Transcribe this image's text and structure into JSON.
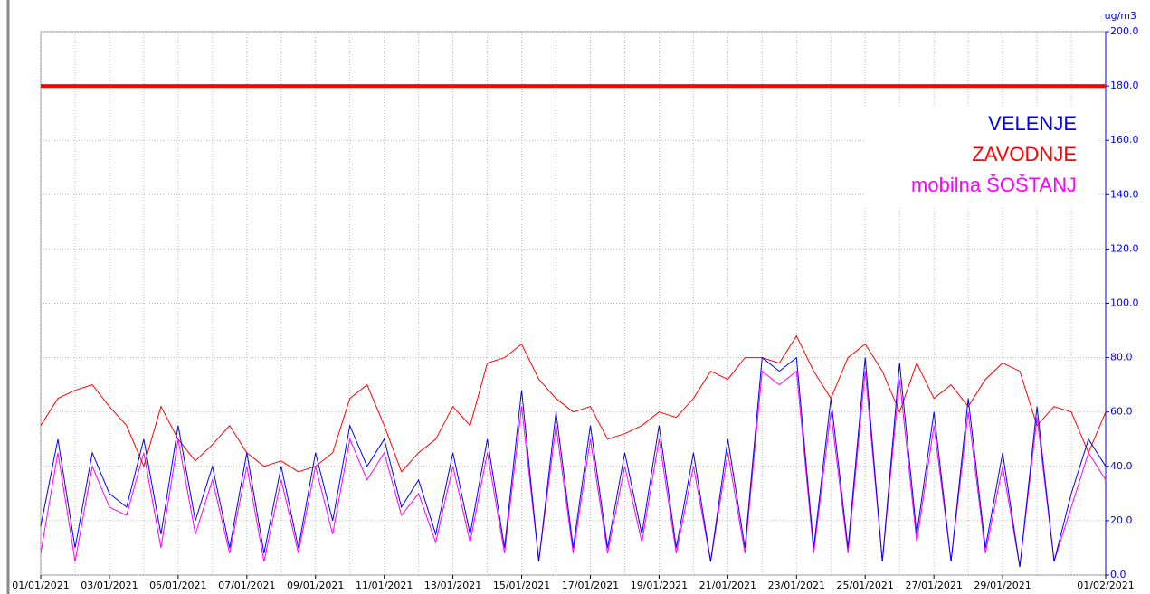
{
  "chart_data": {
    "type": "line",
    "y_unit": "ug/m3",
    "x": [
      0,
      0.5,
      1,
      1.5,
      2,
      2.5,
      3,
      3.5,
      4,
      4.5,
      5,
      5.5,
      6,
      6.5,
      7,
      7.5,
      8,
      8.5,
      9,
      9.5,
      10,
      10.5,
      11,
      11.5,
      12,
      12.5,
      13,
      13.5,
      14,
      14.5,
      15,
      15.5,
      16,
      16.5,
      17,
      17.5,
      18,
      18.5,
      19,
      19.5,
      20,
      20.5,
      21,
      21.5,
      22,
      22.5,
      23,
      23.5,
      24,
      24.5,
      25,
      25.5,
      26,
      26.5,
      27,
      27.5,
      28,
      28.5,
      29,
      29.5,
      30,
      30.5,
      31
    ],
    "xlim": [
      0,
      31
    ],
    "xticks": [
      {
        "value": 0,
        "label": "01/01/2021"
      },
      {
        "value": 2,
        "label": "03/01/2021"
      },
      {
        "value": 4,
        "label": "05/01/2021"
      },
      {
        "value": 6,
        "label": "07/01/2021"
      },
      {
        "value": 8,
        "label": "09/01/2021"
      },
      {
        "value": 10,
        "label": "11/01/2021"
      },
      {
        "value": 12,
        "label": "13/01/2021"
      },
      {
        "value": 14,
        "label": "15/01/2021"
      },
      {
        "value": 16,
        "label": "17/01/2021"
      },
      {
        "value": 18,
        "label": "19/01/2021"
      },
      {
        "value": 20,
        "label": "21/01/2021"
      },
      {
        "value": 22,
        "label": "23/01/2021"
      },
      {
        "value": 24,
        "label": "25/01/2021"
      },
      {
        "value": 26,
        "label": "27/01/2021"
      },
      {
        "value": 28,
        "label": "29/01/2021"
      },
      {
        "value": 31,
        "label": "01/02/2021"
      }
    ],
    "xminor": [
      1,
      3,
      5,
      7,
      9,
      11,
      13,
      15,
      17,
      19,
      21,
      23,
      25,
      27,
      29,
      30
    ],
    "ylim": [
      0,
      200
    ],
    "yticks": [
      {
        "value": 0,
        "label": "0.0"
      },
      {
        "value": 20,
        "label": "20.0"
      },
      {
        "value": 40,
        "label": "40.0"
      },
      {
        "value": 60,
        "label": "60.0"
      },
      {
        "value": 80,
        "label": "80.0"
      },
      {
        "value": 100,
        "label": "100.0"
      },
      {
        "value": 120,
        "label": "120.0"
      },
      {
        "value": 140,
        "label": "140.0"
      },
      {
        "value": 160,
        "label": "160.0"
      },
      {
        "value": 180,
        "label": "180.0"
      },
      {
        "value": 200,
        "label": "200.0"
      }
    ],
    "grid": true,
    "legend": "top-right",
    "threshold": {
      "value": 180,
      "color": "#ff0000"
    },
    "series": [
      {
        "name": "VELENJE",
        "color": "#0000ff",
        "values": [
          18,
          50,
          10,
          45,
          30,
          25,
          50,
          15,
          55,
          20,
          40,
          10,
          45,
          8,
          40,
          10,
          45,
          20,
          55,
          40,
          50,
          25,
          35,
          15,
          45,
          15,
          50,
          10,
          68,
          5,
          60,
          10,
          55,
          10,
          45,
          15,
          55,
          10,
          45,
          5,
          50,
          10,
          80,
          75,
          80,
          10,
          65,
          10,
          80,
          5,
          78,
          15,
          60,
          5,
          65,
          10,
          45,
          3,
          62,
          5,
          30,
          50,
          40
        ]
      },
      {
        "name": "ZAVODNJE",
        "color": "#ff0000",
        "values": [
          55,
          65,
          68,
          70,
          62,
          55,
          40,
          62,
          50,
          42,
          48,
          55,
          45,
          40,
          42,
          38,
          40,
          45,
          65,
          70,
          55,
          38,
          45,
          50,
          62,
          55,
          78,
          80,
          85,
          72,
          65,
          60,
          62,
          50,
          52,
          55,
          60,
          58,
          65,
          75,
          72,
          80,
          80,
          78,
          88,
          75,
          65,
          80,
          85,
          75,
          60,
          78,
          65,
          70,
          62,
          72,
          78,
          75,
          55,
          62,
          60,
          45,
          60
        ]
      },
      {
        "name": "mobilna ŠOŠTANJ",
        "color": "#ff00ff",
        "values": [
          8,
          45,
          5,
          40,
          25,
          22,
          45,
          10,
          50,
          15,
          35,
          8,
          40,
          5,
          35,
          8,
          40,
          15,
          50,
          35,
          45,
          22,
          30,
          12,
          40,
          12,
          45,
          8,
          62,
          5,
          55,
          8,
          50,
          8,
          40,
          12,
          50,
          8,
          40,
          5,
          45,
          8,
          75,
          70,
          75,
          8,
          60,
          8,
          75,
          5,
          72,
          12,
          55,
          5,
          60,
          8,
          40,
          3,
          58,
          5,
          25,
          45,
          35
        ]
      }
    ]
  }
}
